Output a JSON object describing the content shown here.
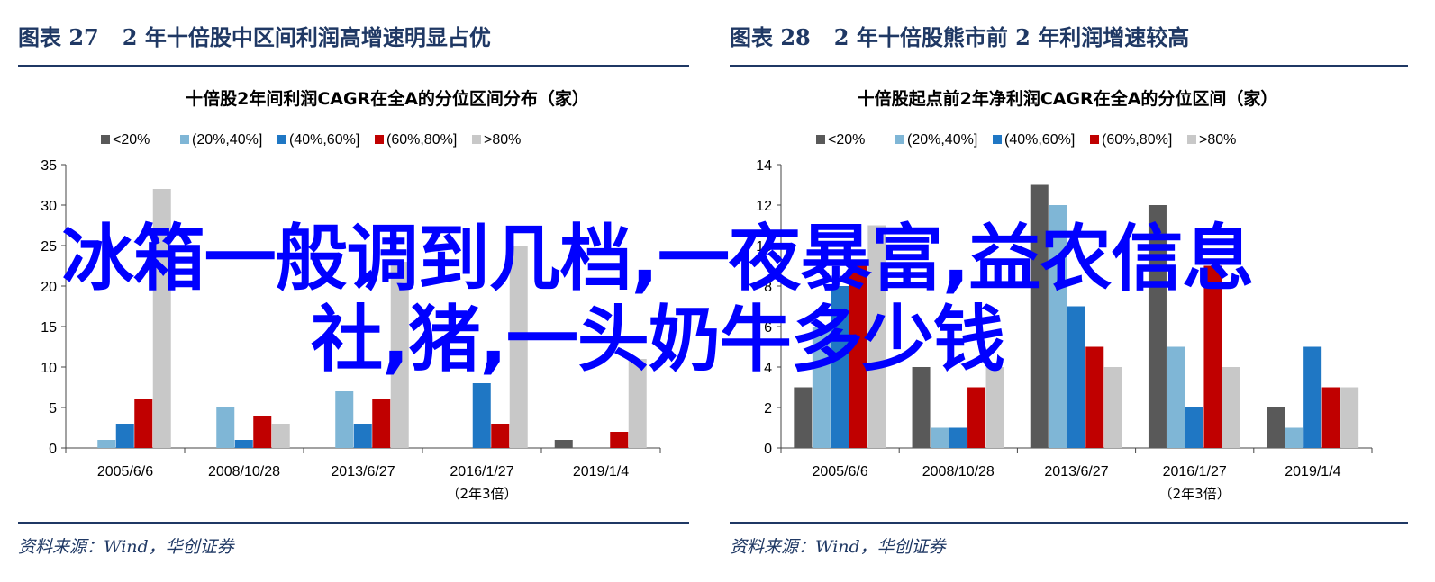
{
  "charts": [
    {
      "figure_label": "图表 27",
      "figure_title": "2 年十倍股中区间利润高增速明显占优",
      "source": "资料来源：Wind，华创证券",
      "chart_data": {
        "type": "bar",
        "title": "十倍股2年间利润CAGR在全A的分位区间分布（家）",
        "categories": [
          "2005/6/6",
          "2008/10/28",
          "2013/6/27",
          "2016/1/27",
          "2019/1/4"
        ],
        "category_sublabels": [
          "",
          "",
          "",
          "（2年3倍）",
          ""
        ],
        "ylim": [
          0,
          35
        ],
        "yticks": [
          0,
          5,
          10,
          15,
          20,
          25,
          30,
          35
        ],
        "legend_position": "top",
        "series": [
          {
            "name": "<20%",
            "color": "#595959",
            "values": [
              0,
              0,
              0,
              0,
              1
            ]
          },
          {
            "name": "(20%,40%]",
            "color": "#7fb6d6",
            "values": [
              1,
              5,
              7,
              0,
              0
            ]
          },
          {
            "name": "(40%,60%]",
            "color": "#1f77c4",
            "values": [
              3,
              1,
              3,
              8,
              0
            ]
          },
          {
            "name": "(60%,80%]",
            "color": "#c00000",
            "values": [
              6,
              4,
              6,
              3,
              2
            ]
          },
          {
            "name": ">80%",
            "color": "#c8c8c8",
            "values": [
              32,
              3,
              23,
              25,
              11
            ]
          }
        ]
      }
    },
    {
      "figure_label": "图表 28",
      "figure_title": "2 年十倍股熊市前 2 年利润增速较高",
      "source": "资料来源：Wind，华创证券",
      "chart_data": {
        "type": "bar",
        "title": "十倍股起点前2年净利润CAGR在全A的分位区间（家）",
        "categories": [
          "2005/6/6",
          "2008/10/28",
          "2013/6/27",
          "2016/1/27",
          "2019/1/4"
        ],
        "category_sublabels": [
          "",
          "",
          "",
          "（2年3倍）",
          ""
        ],
        "ylim": [
          0,
          14
        ],
        "yticks": [
          0,
          2,
          4,
          6,
          8,
          10,
          12,
          14
        ],
        "legend_position": "top",
        "series": [
          {
            "name": "<20%",
            "color": "#595959",
            "values": [
              3,
              4,
              13,
              12,
              2
            ]
          },
          {
            "name": "(20%,40%]",
            "color": "#7fb6d6",
            "values": [
              6,
              1,
              12,
              5,
              1
            ]
          },
          {
            "name": "(40%,60%]",
            "color": "#1f77c4",
            "values": [
              8,
              1,
              7,
              2,
              5
            ]
          },
          {
            "name": "(60%,80%]",
            "color": "#c00000",
            "values": [
              9,
              3,
              5,
              9,
              3
            ]
          },
          {
            "name": ">80%",
            "color": "#c8c8c8",
            "values": [
              11,
              4,
              4,
              4,
              3
            ]
          }
        ]
      }
    }
  ],
  "watermark": {
    "line1": "冰箱一般调到几档,一夜暴富,益农信息",
    "line2": "社,猪,一头奶牛多少钱"
  }
}
